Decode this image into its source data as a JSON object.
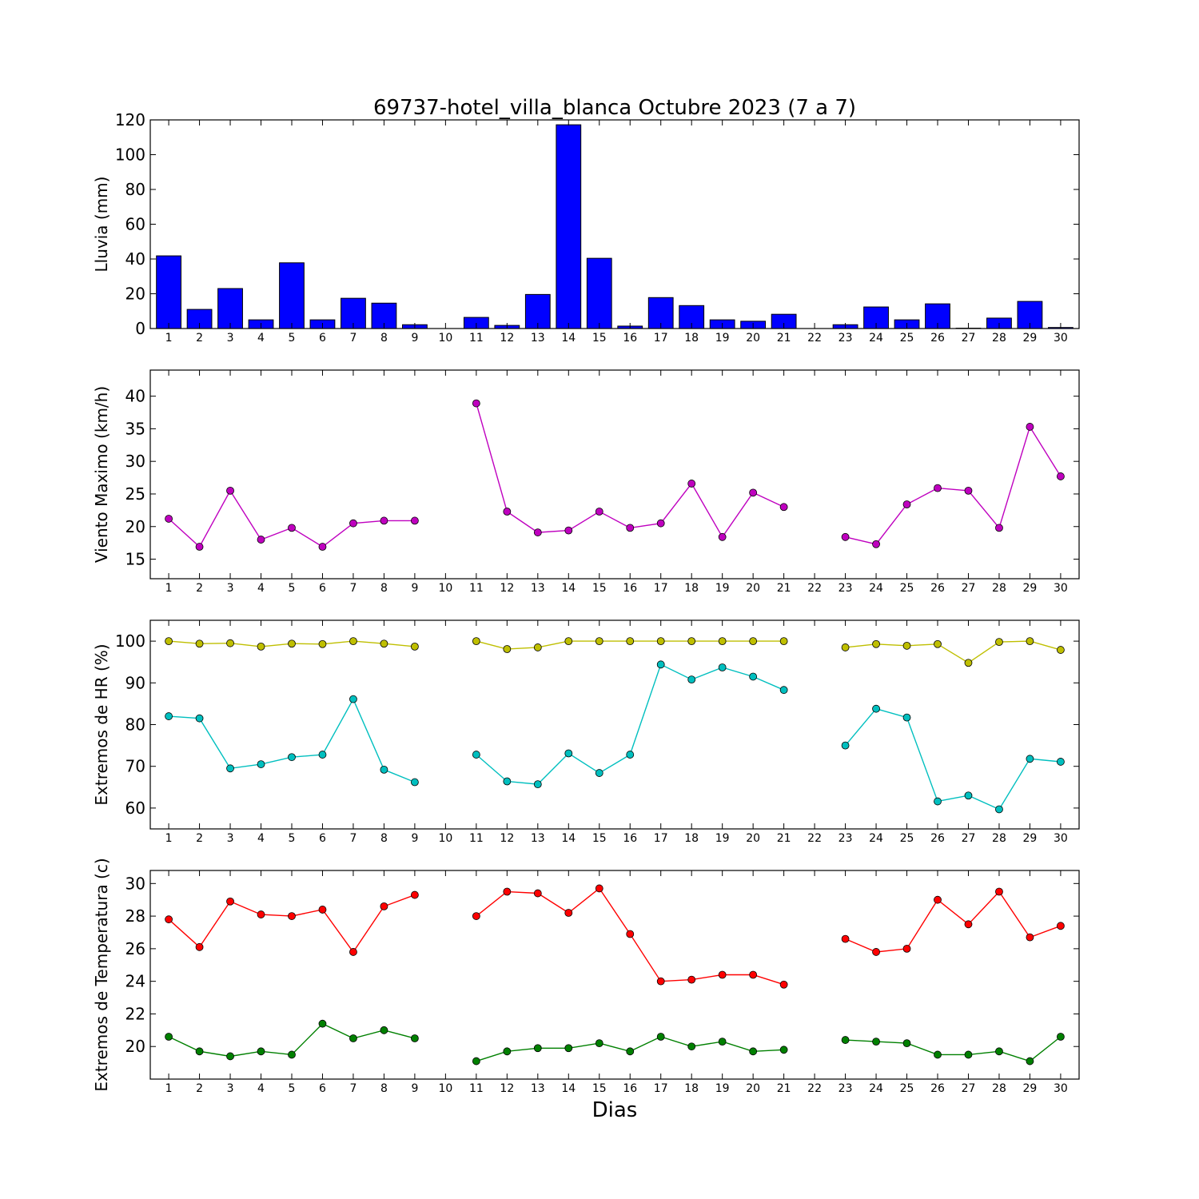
{
  "chart_data": [
    {
      "type": "bar",
      "title": "69737-hotel_villa_blanca Octubre 2023  (7 a 7)",
      "ylabel": "Lluvia (mm)",
      "xlabel": "",
      "ylim": [
        0,
        120
      ],
      "yticks": [
        0,
        20,
        40,
        60,
        80,
        100,
        120
      ],
      "categories": [
        "1",
        "2",
        "3",
        "4",
        "5",
        "6",
        "7",
        "8",
        "9",
        "10",
        "11",
        "12",
        "13",
        "14",
        "15",
        "16",
        "17",
        "18",
        "19",
        "20",
        "21",
        "22",
        "23",
        "24",
        "25",
        "26",
        "27",
        "28",
        "29",
        "30"
      ],
      "series": [
        {
          "color": "#0000ff",
          "values": [
            41.8,
            11.0,
            23.0,
            5.0,
            37.8,
            5.0,
            17.4,
            14.6,
            2.2,
            0,
            6.4,
            1.8,
            19.6,
            117.2,
            40.4,
            1.4,
            17.8,
            13.2,
            5.0,
            4.2,
            8.2,
            0,
            2.2,
            12.4,
            5.0,
            14.2,
            0.2,
            6.0,
            15.6,
            0.6
          ]
        }
      ]
    },
    {
      "type": "line",
      "ylabel": "Viento Maximo (km/h)",
      "xlabel": "",
      "ylim": [
        12,
        44
      ],
      "yticks": [
        15,
        20,
        25,
        30,
        35,
        40
      ],
      "categories": [
        "1",
        "2",
        "3",
        "4",
        "5",
        "6",
        "7",
        "8",
        "9",
        "10",
        "11",
        "12",
        "13",
        "14",
        "15",
        "16",
        "17",
        "18",
        "19",
        "20",
        "21",
        "22",
        "23",
        "24",
        "25",
        "26",
        "27",
        "28",
        "29",
        "30"
      ],
      "series": [
        {
          "color": "#bf00bf",
          "values": [
            21.2,
            16.9,
            25.5,
            18.0,
            19.8,
            16.9,
            20.5,
            20.9,
            20.9,
            null,
            38.9,
            22.3,
            19.1,
            19.4,
            22.3,
            19.8,
            20.5,
            26.6,
            18.4,
            25.2,
            23.0,
            null,
            18.4,
            17.3,
            23.4,
            25.9,
            25.5,
            19.8,
            35.3,
            27.7
          ]
        }
      ]
    },
    {
      "type": "line",
      "ylabel": "Extremos de HR (%)",
      "xlabel": "",
      "ylim": [
        55,
        105
      ],
      "yticks": [
        60,
        70,
        80,
        90,
        100
      ],
      "categories": [
        "1",
        "2",
        "3",
        "4",
        "5",
        "6",
        "7",
        "8",
        "9",
        "10",
        "11",
        "12",
        "13",
        "14",
        "15",
        "16",
        "17",
        "18",
        "19",
        "20",
        "21",
        "22",
        "23",
        "24",
        "25",
        "26",
        "27",
        "28",
        "29",
        "30"
      ],
      "series": [
        {
          "color": "#bfbf00",
          "values": [
            100,
            99.4,
            99.5,
            98.7,
            99.4,
            99.3,
            100,
            99.4,
            98.7,
            null,
            100,
            98.1,
            98.5,
            100,
            100,
            100,
            100,
            100,
            100,
            100,
            100,
            null,
            98.5,
            99.3,
            98.9,
            99.3,
            94.8,
            99.8,
            100,
            97.9
          ]
        },
        {
          "color": "#00bfbf",
          "values": [
            82.0,
            81.5,
            69.5,
            70.5,
            72.2,
            72.8,
            86.1,
            69.2,
            66.2,
            null,
            72.8,
            66.4,
            65.7,
            73.1,
            68.4,
            72.8,
            94.4,
            90.8,
            93.7,
            91.5,
            88.3,
            null,
            75.0,
            83.8,
            81.7,
            61.6,
            63.0,
            59.7,
            71.8,
            71.1
          ]
        }
      ]
    },
    {
      "type": "line",
      "ylabel": "Extremos de Temperatura (c)",
      "xlabel": "Dias",
      "ylim": [
        18,
        30.8
      ],
      "yticks": [
        20,
        22,
        24,
        26,
        28,
        30
      ],
      "categories": [
        "1",
        "2",
        "3",
        "4",
        "5",
        "6",
        "7",
        "8",
        "9",
        "10",
        "11",
        "12",
        "13",
        "14",
        "15",
        "16",
        "17",
        "18",
        "19",
        "20",
        "21",
        "22",
        "23",
        "24",
        "25",
        "26",
        "27",
        "28",
        "29",
        "30"
      ],
      "series": [
        {
          "color": "#ff0000",
          "values": [
            27.8,
            26.1,
            28.9,
            28.1,
            28.0,
            28.4,
            25.8,
            28.6,
            29.3,
            null,
            28.0,
            29.5,
            29.4,
            28.2,
            29.7,
            26.9,
            24.0,
            24.1,
            24.4,
            24.4,
            23.8,
            null,
            26.6,
            25.8,
            26.0,
            29.0,
            27.5,
            29.5,
            26.7,
            27.4
          ]
        },
        {
          "color": "#008000",
          "values": [
            20.6,
            19.7,
            19.4,
            19.7,
            19.5,
            21.4,
            20.5,
            21.0,
            20.5,
            null,
            19.1,
            19.7,
            19.9,
            19.9,
            20.2,
            19.7,
            20.6,
            20.0,
            20.3,
            19.7,
            19.8,
            null,
            20.4,
            20.3,
            20.2,
            19.5,
            19.5,
            19.7,
            19.1,
            20.6
          ]
        }
      ]
    }
  ]
}
